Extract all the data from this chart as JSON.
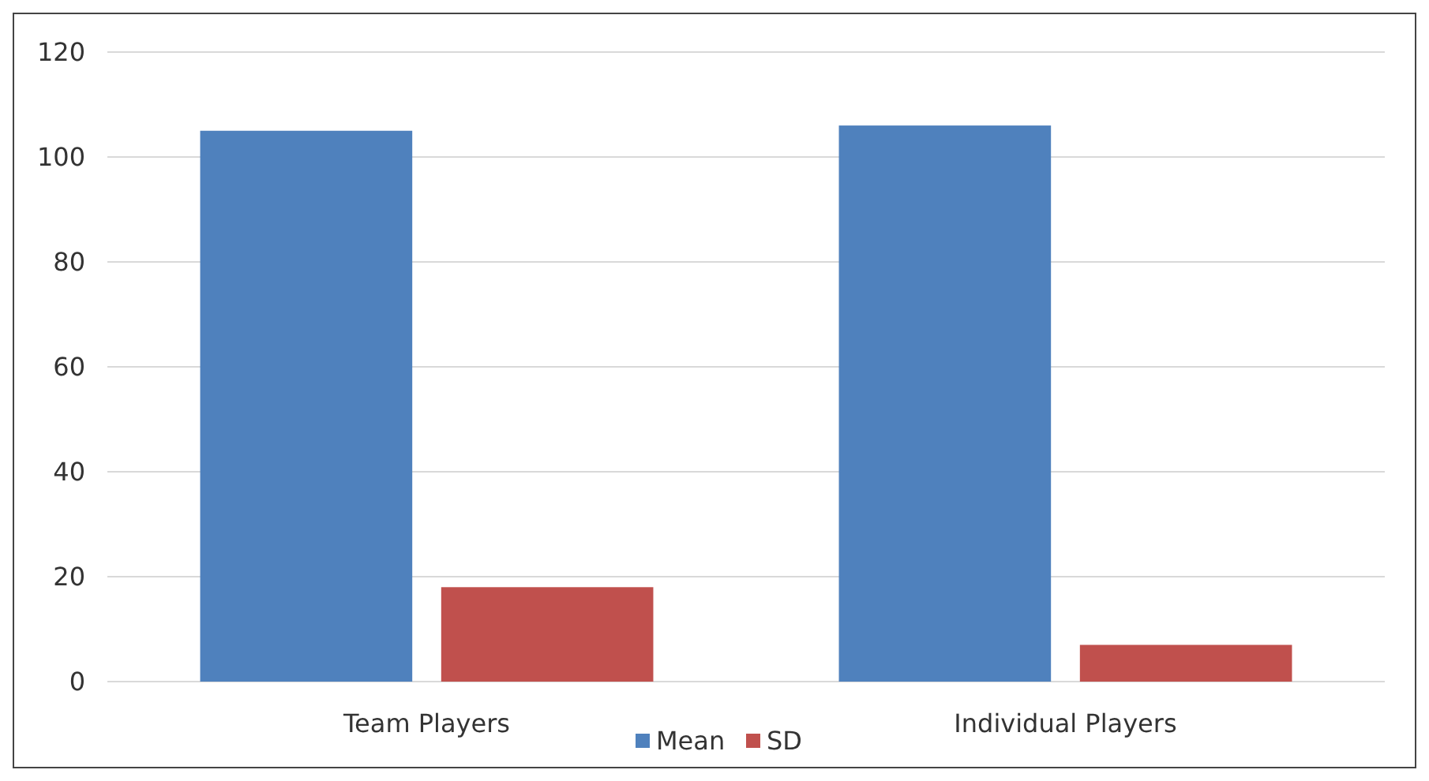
{
  "chart_data": {
    "type": "bar",
    "categories": [
      "Team Players",
      "Individual Players"
    ],
    "series": [
      {
        "name": "Mean",
        "color": "#4f81bd",
        "values": [
          105,
          106
        ]
      },
      {
        "name": "SD",
        "color": "#c0504d",
        "values": [
          18,
          7
        ]
      }
    ],
    "ylim": [
      0,
      120
    ],
    "yticks": [
      0,
      20,
      40,
      60,
      80,
      100,
      120
    ],
    "grid": "y",
    "legend": "bottom"
  }
}
